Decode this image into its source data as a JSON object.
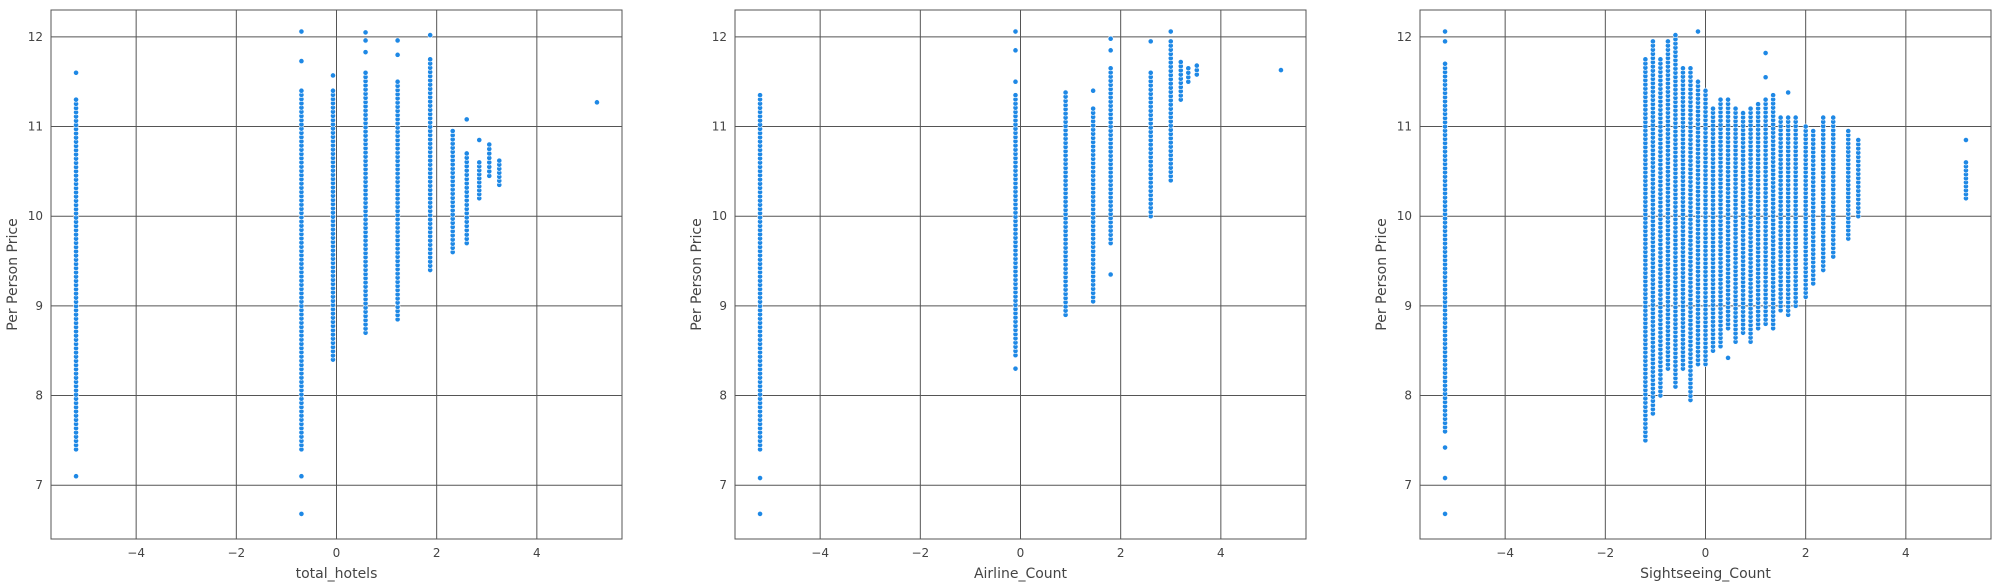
{
  "figure": {
    "point_color": "#1e88e5",
    "point_edge_color": "#ffffff",
    "grid_color": "#555555",
    "background": "#ffffff"
  },
  "chart_data": [
    {
      "type": "scatter",
      "title": "",
      "xlabel": "total_hotels",
      "ylabel": "Per Person Price",
      "xlim": [
        -5.7,
        5.7
      ],
      "ylim": [
        6.4,
        12.3
      ],
      "xticks": [
        -4,
        -2,
        0,
        2,
        4
      ],
      "yticks": [
        7,
        8,
        9,
        10,
        11,
        12
      ],
      "xtick_labels": [
        "−4",
        "−2",
        "0",
        "2",
        "4"
      ],
      "ytick_labels": [
        "7",
        "8",
        "9",
        "10",
        "11",
        "12"
      ],
      "grid": true,
      "legend": "none",
      "columns": [
        {
          "x": -5.2,
          "dense": [
            7.4,
            11.3
          ],
          "extra": [
            7.1,
            11.6
          ]
        },
        {
          "x": -0.7,
          "dense": [
            7.4,
            11.4
          ],
          "extra": [
            6.68,
            7.1,
            11.73,
            12.06
          ]
        },
        {
          "x": -0.07,
          "dense": [
            8.4,
            11.4
          ],
          "extra": [
            11.57
          ]
        },
        {
          "x": 0.58,
          "dense": [
            8.7,
            11.6
          ],
          "extra": [
            11.83,
            11.96,
            12.05
          ]
        },
        {
          "x": 1.22,
          "dense": [
            8.85,
            11.5
          ],
          "extra": [
            11.8,
            11.96
          ]
        },
        {
          "x": 1.87,
          "dense": [
            9.4,
            11.75
          ],
          "extra": [
            12.02
          ]
        },
        {
          "x": 2.32,
          "dense": [
            9.6,
            10.95
          ],
          "extra": []
        },
        {
          "x": 2.6,
          "dense": [
            9.7,
            10.7
          ],
          "extra": [
            11.08
          ]
        },
        {
          "x": 2.85,
          "dense": [
            10.2,
            10.6
          ],
          "extra": [
            10.85
          ]
        },
        {
          "x": 3.05,
          "dense": [
            10.45,
            10.8
          ],
          "extra": []
        },
        {
          "x": 3.25,
          "dense": [
            10.35,
            10.62
          ],
          "extra": []
        },
        {
          "x": 5.2,
          "dense": [],
          "extra": [
            11.27
          ]
        }
      ]
    },
    {
      "type": "scatter",
      "title": "",
      "xlabel": "Airline_Count",
      "ylabel": "Per Person Price",
      "xlim": [
        -5.7,
        5.7
      ],
      "ylim": [
        6.4,
        12.3
      ],
      "xticks": [
        -4,
        -2,
        0,
        2,
        4
      ],
      "yticks": [
        7,
        8,
        9,
        10,
        11,
        12
      ],
      "xtick_labels": [
        "−4",
        "−2",
        "0",
        "2",
        "4"
      ],
      "ytick_labels": [
        "7",
        "8",
        "9",
        "10",
        "11",
        "12"
      ],
      "grid": true,
      "legend": "none",
      "columns": [
        {
          "x": -5.2,
          "dense": [
            7.4,
            11.35
          ],
          "extra": [
            6.68,
            7.08
          ]
        },
        {
          "x": -0.1,
          "dense": [
            8.45,
            11.35
          ],
          "extra": [
            8.3,
            11.5,
            11.85,
            12.06
          ]
        },
        {
          "x": 0.9,
          "dense": [
            8.9,
            11.38
          ],
          "extra": []
        },
        {
          "x": 1.45,
          "dense": [
            9.05,
            11.2
          ],
          "extra": [
            11.4
          ]
        },
        {
          "x": 1.8,
          "dense": [
            9.7,
            11.65
          ],
          "extra": [
            9.35,
            11.85,
            11.98
          ]
        },
        {
          "x": 2.6,
          "dense": [
            10.0,
            11.6
          ],
          "extra": [
            11.95
          ]
        },
        {
          "x": 3.0,
          "dense": [
            10.4,
            11.95
          ],
          "extra": [
            12.06
          ]
        },
        {
          "x": 3.2,
          "dense": [
            11.3,
            11.72
          ],
          "extra": []
        },
        {
          "x": 3.35,
          "dense": [
            11.5,
            11.65
          ],
          "extra": []
        },
        {
          "x": 3.52,
          "dense": [
            11.58,
            11.68
          ],
          "extra": []
        },
        {
          "x": 5.2,
          "dense": [],
          "extra": [
            11.63
          ]
        }
      ]
    },
    {
      "type": "scatter",
      "title": "",
      "xlabel": "Sightseeing_Count",
      "ylabel": "Per Person Price",
      "xlim": [
        -5.7,
        5.7
      ],
      "ylim": [
        6.4,
        12.3
      ],
      "xticks": [
        -4,
        -2,
        0,
        2,
        4
      ],
      "yticks": [
        7,
        8,
        9,
        10,
        11,
        12
      ],
      "xtick_labels": [
        "−4",
        "−2",
        "0",
        "2",
        "4"
      ],
      "ytick_labels": [
        "7",
        "8",
        "9",
        "10",
        "11",
        "12"
      ],
      "grid": true,
      "legend": "none",
      "columns": [
        {
          "x": -5.2,
          "dense": [
            7.6,
            11.7
          ],
          "extra": [
            6.68,
            7.08,
            7.42,
            11.95,
            12.06
          ]
        },
        {
          "x": -1.2,
          "dense": [
            7.5,
            11.75
          ],
          "extra": []
        },
        {
          "x": -1.05,
          "dense": [
            7.8,
            11.95
          ],
          "extra": []
        },
        {
          "x": -0.9,
          "dense": [
            8.0,
            11.75
          ],
          "extra": []
        },
        {
          "x": -0.75,
          "dense": [
            8.3,
            11.95
          ],
          "extra": []
        },
        {
          "x": -0.6,
          "dense": [
            8.1,
            12.02
          ],
          "extra": []
        },
        {
          "x": -0.45,
          "dense": [
            8.3,
            11.65
          ],
          "extra": []
        },
        {
          "x": -0.3,
          "dense": [
            7.95,
            11.65
          ],
          "extra": []
        },
        {
          "x": -0.15,
          "dense": [
            8.35,
            11.5
          ],
          "extra": [
            12.06
          ]
        },
        {
          "x": 0.0,
          "dense": [
            8.35,
            11.4
          ],
          "extra": []
        },
        {
          "x": 0.15,
          "dense": [
            8.5,
            11.2
          ],
          "extra": []
        },
        {
          "x": 0.3,
          "dense": [
            8.55,
            11.3
          ],
          "extra": []
        },
        {
          "x": 0.45,
          "dense": [
            8.75,
            11.3
          ],
          "extra": [
            8.42
          ]
        },
        {
          "x": 0.6,
          "dense": [
            8.6,
            11.2
          ],
          "extra": []
        },
        {
          "x": 0.75,
          "dense": [
            8.7,
            11.15
          ],
          "extra": []
        },
        {
          "x": 0.9,
          "dense": [
            8.6,
            11.2
          ],
          "extra": []
        },
        {
          "x": 1.05,
          "dense": [
            8.75,
            11.25
          ],
          "extra": []
        },
        {
          "x": 1.2,
          "dense": [
            8.8,
            11.3
          ],
          "extra": [
            11.55,
            11.82
          ]
        },
        {
          "x": 1.35,
          "dense": [
            8.75,
            11.35
          ],
          "extra": []
        },
        {
          "x": 1.5,
          "dense": [
            8.95,
            11.1
          ],
          "extra": []
        },
        {
          "x": 1.65,
          "dense": [
            8.9,
            11.1
          ],
          "extra": [
            11.38
          ]
        },
        {
          "x": 1.8,
          "dense": [
            9.0,
            11.1
          ],
          "extra": []
        },
        {
          "x": 2.0,
          "dense": [
            9.1,
            11.0
          ],
          "extra": []
        },
        {
          "x": 2.15,
          "dense": [
            9.25,
            10.95
          ],
          "extra": []
        },
        {
          "x": 2.35,
          "dense": [
            9.4,
            11.1
          ],
          "extra": []
        },
        {
          "x": 2.55,
          "dense": [
            9.55,
            11.1
          ],
          "extra": []
        },
        {
          "x": 2.85,
          "dense": [
            9.75,
            10.95
          ],
          "extra": []
        },
        {
          "x": 3.05,
          "dense": [
            10.0,
            10.85
          ],
          "extra": []
        },
        {
          "x": 5.2,
          "dense": [
            10.2,
            10.6
          ],
          "extra": [
            10.85
          ]
        }
      ]
    }
  ]
}
